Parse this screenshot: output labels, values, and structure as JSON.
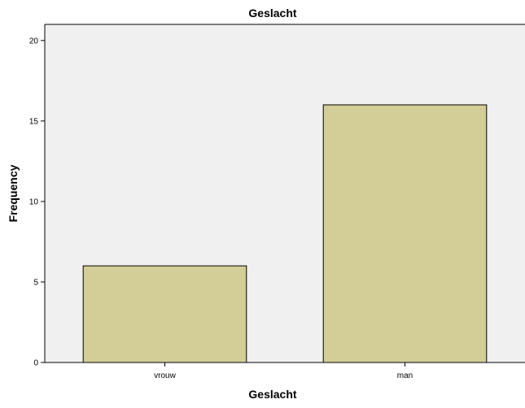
{
  "chart_data": {
    "type": "bar",
    "title": "Geslacht",
    "xlabel": "Geslacht",
    "ylabel": "Frequency",
    "categories": [
      "vrouw",
      "man"
    ],
    "values": [
      6,
      16
    ],
    "ylim": [
      0,
      21
    ],
    "yticks": [
      0,
      5,
      10,
      15,
      20
    ],
    "grid": false,
    "legend": "none",
    "colors": {
      "bar_fill": "#D3CE97",
      "bar_stroke": "#000000",
      "plot_background": "#F0F0F0",
      "page_background": "#FFFFFF",
      "axis": "#000000"
    }
  }
}
